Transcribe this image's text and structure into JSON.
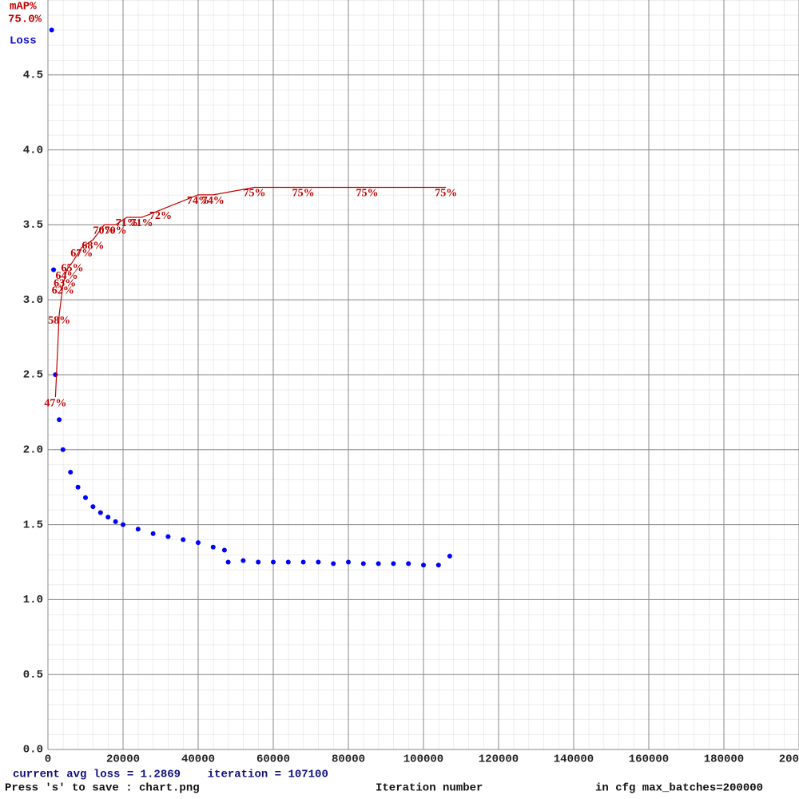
{
  "chart_data": {
    "type": "scatter",
    "xlabel": "Iteration number",
    "y_label": "Loss",
    "map_label": "mAP%",
    "best_map": "75.0%",
    "status": "current avg loss = 1.2869    iteration = 107100",
    "save_hint": "Press 's' to save : chart.png",
    "max_batches": "in cfg max_batches=200000",
    "xlim": [
      0,
      200000
    ],
    "ylim": [
      0,
      5
    ],
    "map_lim": [
      0,
      100
    ],
    "xticks": [
      0,
      20000,
      40000,
      60000,
      80000,
      100000,
      120000,
      140000,
      160000,
      180000,
      200000
    ],
    "yticks": [
      {
        "value": 0,
        "label": "0.0"
      },
      0.5,
      {
        "value": 1,
        "label": "1.0"
      },
      1.5,
      {
        "value": 2,
        "label": "2.0"
      },
      2.5,
      {
        "value": 3,
        "label": "3.0"
      },
      3.5,
      {
        "value": 4,
        "label": "4.0"
      },
      4.5
    ],
    "grid": true,
    "series": [
      {
        "name": "Loss",
        "color": "#0000ff",
        "x": [
          1000,
          1500,
          2000,
          3000,
          4000,
          6000,
          8000,
          10000,
          12000,
          14000,
          16000,
          18000,
          20000,
          24000,
          28000,
          32000,
          36000,
          40000,
          44000,
          47000,
          48000,
          52000,
          56000,
          60000,
          64000,
          68000,
          72000,
          76000,
          80000,
          84000,
          88000,
          92000,
          96000,
          100000,
          104000,
          107000
        ],
        "values": [
          4.8,
          3.2,
          2.5,
          2.2,
          2.0,
          1.85,
          1.75,
          1.68,
          1.62,
          1.58,
          1.55,
          1.52,
          1.5,
          1.47,
          1.44,
          1.42,
          1.4,
          1.38,
          1.35,
          1.33,
          1.25,
          1.26,
          1.25,
          1.25,
          1.25,
          1.25,
          1.25,
          1.24,
          1.25,
          1.24,
          1.24,
          1.24,
          1.24,
          1.23,
          1.23,
          1.29
        ]
      },
      {
        "name": "mAP%",
        "color": "#c00000",
        "axis": "map",
        "x": [
          2000,
          3000,
          4000,
          4500,
          5000,
          6500,
          9000,
          12000,
          15000,
          18000,
          21000,
          25000,
          30000,
          40000,
          44000,
          55000,
          68000,
          85000,
          106000
        ],
        "values": [
          47,
          58,
          62,
          63,
          64,
          65,
          67,
          68,
          70,
          70,
          71,
          71,
          72,
          74,
          74,
          75,
          75,
          75,
          75
        ],
        "value_labels": [
          "47%",
          "58%",
          "62%",
          "63%",
          "64%",
          "65%",
          "67%",
          "68%",
          "70%",
          "70%",
          "71%",
          "71%",
          "72%",
          "74%",
          "74%",
          "75%",
          "75%",
          "75%",
          "75%"
        ]
      }
    ]
  }
}
